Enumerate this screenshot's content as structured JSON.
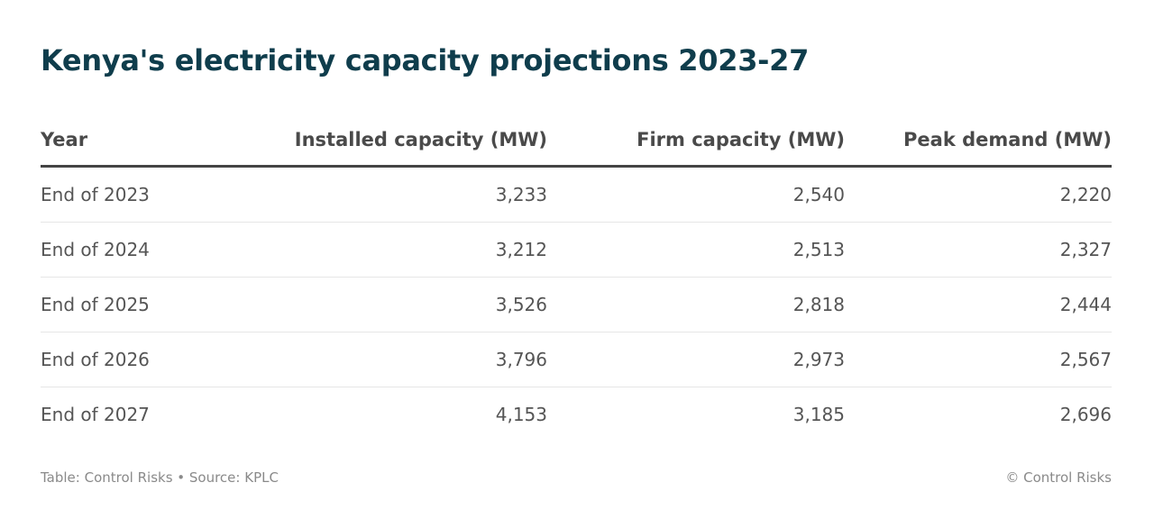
{
  "chart_data": {
    "type": "table",
    "title": "Kenya's electricity capacity projections 2023-27",
    "columns": [
      "Year",
      "Installed capacity (MW)",
      "Firm capacity (MW)",
      "Peak demand (MW)"
    ],
    "rows": [
      [
        "End of 2023",
        "3,233",
        "2,540",
        "2,220"
      ],
      [
        "End of 2024",
        "3,212",
        "2,513",
        "2,327"
      ],
      [
        "End of 2025",
        "3,526",
        "2,818",
        "2,444"
      ],
      [
        "End of 2026",
        "3,796",
        "2,973",
        "2,567"
      ],
      [
        "End of 2027",
        "4,153",
        "3,185",
        "2,696"
      ]
    ]
  },
  "footer": {
    "source": "Table: Control Risks • Source: KPLC",
    "credit": "© Control Risks"
  }
}
